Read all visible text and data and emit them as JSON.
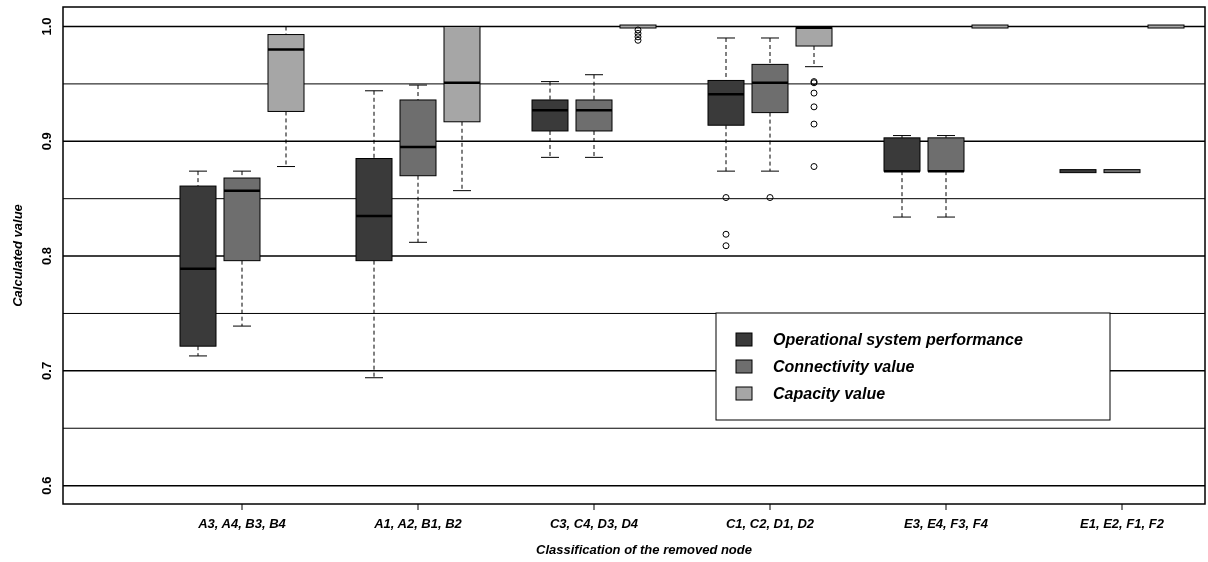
{
  "chart_data": {
    "type": "box",
    "xlabel": "Classification of the removed node",
    "ylabel": "Calculated value",
    "categories": [
      "A3, A4, B3, B4",
      "A1, A2, B1, B2",
      "C3, C4, D3, D4",
      "C1, C2, D1, D2",
      "E3, E4, F3, F4",
      "E1, E2, F1, F2"
    ],
    "ylim": [
      0.584,
      1.017
    ],
    "yticks": [
      0.6,
      {
        "value": 0.65,
        "label": null
      },
      0.7,
      {
        "value": 0.75,
        "label": null
      },
      0.8,
      {
        "value": 0.85,
        "label": null
      },
      0.9,
      {
        "value": 0.95,
        "label": null
      },
      {
        "value": 1.0,
        "label": "1.0"
      }
    ],
    "grid": "y",
    "legend": "right",
    "series": [
      {
        "name": "Operational system performance",
        "color": "#3a3a3a",
        "boxes": [
          {
            "low": 0.713,
            "q1": 0.7215,
            "median": 0.789,
            "q3": 0.861,
            "high": 0.874
          },
          {
            "low": 0.694,
            "q1": 0.796,
            "median": 0.835,
            "q3": 0.885,
            "high": 0.944
          },
          {
            "low": 0.886,
            "q1": 0.909,
            "median": 0.927,
            "q3": 0.936,
            "high": 0.952
          },
          {
            "low": 0.874,
            "q1": 0.914,
            "median": 0.941,
            "q3": 0.953,
            "high": 0.99,
            "outliers": [
              0.851,
              0.819,
              0.809
            ]
          },
          {
            "low": 0.834,
            "q1": 0.874,
            "median": 0.874,
            "q3": 0.903,
            "high": 0.905
          },
          {
            "low": 0.874,
            "q1": 0.874,
            "median": 0.874,
            "q3": 0.874,
            "high": 0.874
          }
        ]
      },
      {
        "name": "Connectivity value",
        "color": "#6e6e6e",
        "boxes": [
          {
            "low": 0.739,
            "q1": 0.796,
            "median": 0.857,
            "q3": 0.868,
            "high": 0.874
          },
          {
            "low": 0.812,
            "q1": 0.87,
            "median": 0.895,
            "q3": 0.936,
            "high": 0.949
          },
          {
            "low": 0.886,
            "q1": 0.909,
            "median": 0.927,
            "q3": 0.936,
            "high": 0.958
          },
          {
            "low": 0.874,
            "q1": 0.925,
            "median": 0.951,
            "q3": 0.967,
            "high": 0.99,
            "outliers": [
              0.851
            ]
          },
          {
            "low": 0.834,
            "q1": 0.874,
            "median": 0.874,
            "q3": 0.903,
            "high": 0.905
          },
          {
            "low": 0.874,
            "q1": 0.874,
            "median": 0.874,
            "q3": 0.874,
            "high": 0.874
          }
        ]
      },
      {
        "name": "Capacity value",
        "color": "#a6a6a6",
        "boxes": [
          {
            "low": 0.878,
            "q1": 0.926,
            "median": 0.98,
            "q3": 0.993,
            "high": 1.0
          },
          {
            "low": 0.857,
            "q1": 0.917,
            "median": 0.951,
            "q3": 1.0,
            "high": 1.0
          },
          {
            "low": 1.0,
            "q1": 1.0,
            "median": 1.0,
            "q3": 1.0,
            "high": 1.0,
            "outliers": [
              0.997,
              0.994,
              0.991,
              0.988
            ]
          },
          {
            "low": 0.965,
            "q1": 0.983,
            "median": 0.999,
            "q3": 0.999,
            "high": 1.0,
            "outliers": [
              0.952,
              0.951,
              0.942,
              0.93,
              0.915,
              0.878
            ]
          },
          {
            "low": 1.0,
            "q1": 1.0,
            "median": 1.0,
            "q3": 1.0,
            "high": 1.0
          },
          {
            "low": 1.0,
            "q1": 1.0,
            "median": 1.0,
            "q3": 1.0,
            "high": 1.0
          }
        ]
      }
    ]
  }
}
